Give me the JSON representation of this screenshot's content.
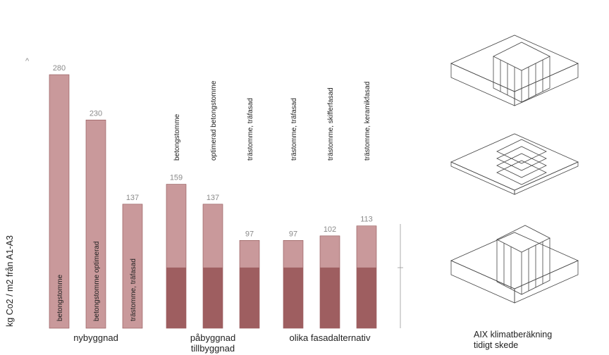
{
  "chart_data": {
    "type": "bar",
    "ylabel": "kg Co2 / m2 från A1-A3",
    "ylim": [
      0,
      300
    ],
    "groups": [
      {
        "label": "nybyggnad"
      },
      {
        "label": "påbyggnad\ntillbyggnad"
      },
      {
        "label": "olika fasadalternativ"
      }
    ],
    "bars": [
      {
        "value": 280,
        "value_label": "280",
        "text": "betongstomme",
        "group": 0
      },
      {
        "value": 230,
        "value_label": "230",
        "text": "betongstomme optimerad",
        "group": 0
      },
      {
        "value": 137,
        "value_label": "137",
        "text": "trästomme, träfasad",
        "group": 0
      },
      {
        "value": 159,
        "value_label": "159",
        "text": "betongstomme",
        "group": 1,
        "base": 67
      },
      {
        "value": 137,
        "value_label": "137",
        "text": "optimerad betongstomme",
        "group": 1,
        "base": 67
      },
      {
        "value": 97,
        "value_label": "97",
        "text": "trästomme, träfasad",
        "group": 1,
        "base": 67
      },
      {
        "value": 97,
        "value_label": "97",
        "text": "trästomme, träfasad",
        "group": 2,
        "base": 67
      },
      {
        "value": 102,
        "value_label": "102",
        "text": "trästomme, skifferfasad",
        "group": 2,
        "base": 67
      },
      {
        "value": 113,
        "value_label": "113",
        "text": "trästomme, keramikfasad",
        "group": 2,
        "base": 67
      }
    ],
    "colors": {
      "bar": "#c9999b",
      "base": "#9e5e60",
      "edge": "#8f5254"
    }
  },
  "caption": {
    "line1": "AIX klimatberäkning",
    "line2": "tidigt skede"
  }
}
